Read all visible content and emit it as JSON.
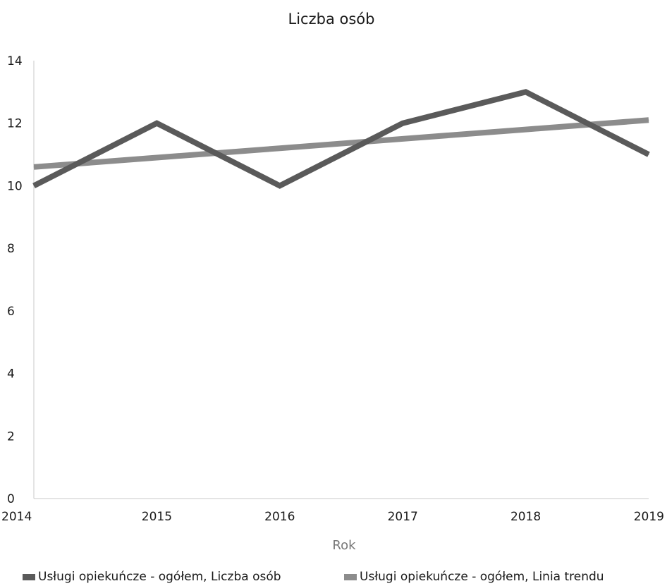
{
  "chart_data": {
    "type": "line",
    "title": "Liczba osób",
    "xlabel": "Rok",
    "ylabel": "",
    "x": [
      "2014",
      "2015",
      "2016",
      "2017",
      "2018",
      "2019"
    ],
    "ylim": [
      0,
      14
    ],
    "yticks": [
      0,
      2,
      4,
      6,
      8,
      10,
      12,
      14
    ],
    "grid": false,
    "legend_position": "bottom",
    "series": [
      {
        "name": "Usługi opiekuńcze - ogółem, Liczba osób",
        "values": [
          10,
          12,
          10,
          12,
          13,
          11
        ],
        "color": "#5a5a5a"
      },
      {
        "name": "Usługi opiekuńcze - ogółem, Linia trendu",
        "values": [
          10.6,
          10.9,
          11.2,
          11.5,
          11.8,
          12.1
        ],
        "color": "#8c8c8c"
      }
    ]
  }
}
